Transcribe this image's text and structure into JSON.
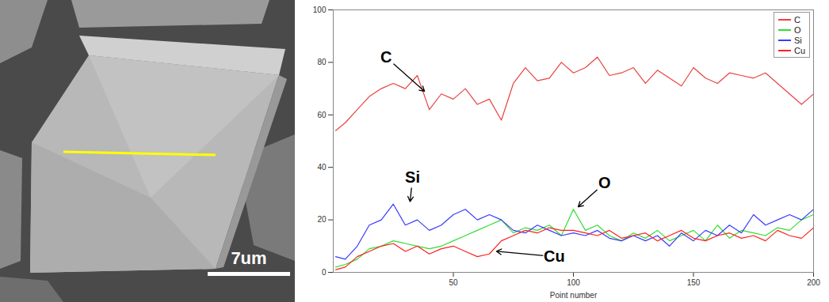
{
  "chart_data": {
    "type": "line",
    "x_label": "Point number",
    "x": [
      1,
      5,
      10,
      15,
      20,
      25,
      30,
      35,
      40,
      45,
      50,
      55,
      60,
      65,
      70,
      75,
      80,
      85,
      90,
      95,
      100,
      105,
      110,
      115,
      120,
      125,
      130,
      135,
      140,
      145,
      150,
      155,
      160,
      165,
      170,
      175,
      180,
      185,
      190,
      195,
      200
    ],
    "series": [
      {
        "name": "C",
        "color": "#e8433f",
        "values": [
          54,
          57,
          62,
          67,
          70,
          72,
          70,
          75,
          62,
          68,
          66,
          70,
          64,
          66,
          58,
          72,
          78,
          73,
          74,
          80,
          76,
          78,
          82,
          75,
          76,
          78,
          72,
          77,
          74,
          71,
          78,
          74,
          72,
          76,
          75,
          74,
          76,
          72,
          68,
          64,
          68
        ]
      },
      {
        "name": "O",
        "color": "#33dd33",
        "values": [
          2,
          3,
          5,
          9,
          10,
          12,
          11,
          10,
          9,
          10,
          12,
          14,
          16,
          18,
          20,
          15,
          17,
          16,
          18,
          14,
          24,
          16,
          18,
          14,
          12,
          15,
          13,
          16,
          12,
          14,
          16,
          12,
          18,
          13,
          16,
          15,
          14,
          17,
          16,
          20,
          22
        ]
      },
      {
        "name": "Si",
        "color": "#3a3aff",
        "values": [
          6,
          5,
          10,
          18,
          20,
          26,
          18,
          20,
          16,
          18,
          22,
          24,
          20,
          22,
          20,
          16,
          15,
          18,
          16,
          14,
          15,
          14,
          16,
          13,
          12,
          14,
          12,
          14,
          10,
          15,
          12,
          16,
          14,
          18,
          15,
          22,
          18,
          20,
          22,
          20,
          24
        ]
      },
      {
        "name": "Cu",
        "color": "#ff2020",
        "values": [
          1,
          2,
          6,
          8,
          10,
          11,
          8,
          10,
          7,
          9,
          10,
          8,
          6,
          7,
          12,
          14,
          16,
          15,
          17,
          16,
          16,
          15,
          14,
          16,
          13,
          14,
          15,
          12,
          14,
          16,
          13,
          12,
          14,
          15,
          13,
          14,
          12,
          16,
          14,
          13,
          17
        ]
      }
    ],
    "xlim": [
      0,
      200
    ],
    "xticks": [
      50,
      100,
      150,
      200
    ],
    "ylim": [
      0,
      100
    ],
    "yticks": [
      0,
      20,
      40,
      60,
      80,
      100
    ],
    "grid": false,
    "legend": "top-right",
    "annotations": [
      {
        "text": "C",
        "x": 22,
        "y": 82,
        "target_x": 38,
        "target_y": 69
      },
      {
        "text": "Si",
        "x": 33,
        "y": 36,
        "target_x": 32,
        "target_y": 27
      },
      {
        "text": "O",
        "x": 113,
        "y": 34,
        "target_x": 102,
        "target_y": 25
      },
      {
        "text": "Cu",
        "x": 92,
        "y": 6,
        "target_x": 68,
        "target_y": 8
      }
    ]
  },
  "micrograph": {
    "scale_bar": "7um",
    "line_scan": {
      "color": "#ffff00"
    }
  }
}
